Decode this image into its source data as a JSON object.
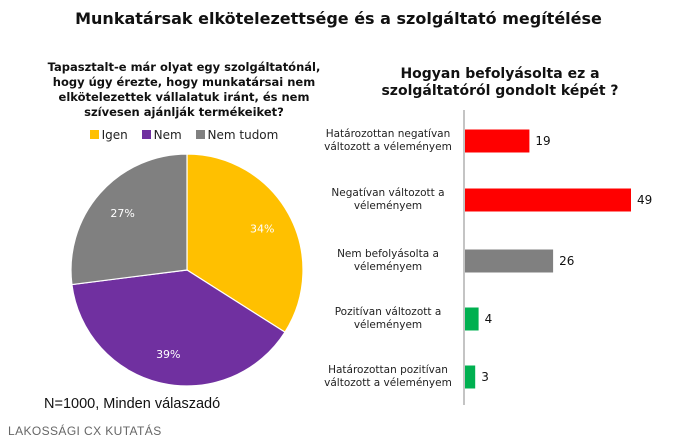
{
  "title": "Munkatársak elkötelezettsége és a szolgáltató megítélése",
  "footnote": "N=1000, Minden válaszadó",
  "brand": "LAKOSSÁGI CX KUTATÁS",
  "chart_data": [
    {
      "type": "pie",
      "title_lines": [
        "Tapasztalt-e már olyat egy szolgáltatónál,",
        "hogy úgy érezte, hogy munkatársai nem",
        "elkötelezettek vállalatuk iránt, és nem",
        "szívesen ajánlják termékeiket?"
      ],
      "unit": "%",
      "slices": [
        {
          "label": "Igen",
          "value": 34,
          "color": "#FFC000"
        },
        {
          "label": "Nem",
          "value": 39,
          "color": "#7030A0"
        },
        {
          "label": "Nem tudom",
          "value": 27,
          "color": "#808080"
        }
      ],
      "legend_position": "top"
    },
    {
      "type": "bar",
      "orientation": "horizontal",
      "title_lines": [
        "Hogyan befolyásolta ez a",
        "szolgáltatóról gondolt képét ?"
      ],
      "categories": [
        [
          "Határozottan negatívan",
          "változott a véleményem"
        ],
        [
          "Negatívan változott a",
          "véleményem"
        ],
        [
          "Nem befolyásolta a",
          "véleményem"
        ],
        [
          "Pozitívan változott a",
          "véleményem"
        ],
        [
          "Határozottan pozitívan",
          "változott a véleményem"
        ]
      ],
      "values": [
        19,
        49,
        26,
        4,
        3
      ],
      "colors": [
        "#FF0000",
        "#FF0000",
        "#808080",
        "#00B050",
        "#00B050"
      ],
      "data_labels": true,
      "grid": false
    }
  ]
}
